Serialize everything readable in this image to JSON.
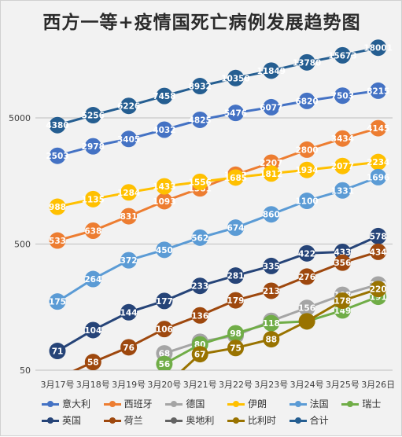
{
  "chart_data": {
    "type": "line",
    "title": "西方一等+疫情国死亡病例发展趋势图",
    "y_scale": "log",
    "ylim": [
      50,
      18000
    ],
    "y_ticks": [
      "50",
      "500",
      "5000"
    ],
    "categories": [
      "3月17号",
      "3月18号",
      "3月19号",
      "3月20号",
      "3月21号",
      "3月22号",
      "3月23号",
      "3月24号",
      "3月25号",
      "3月26日"
    ],
    "legend_position": "bottom",
    "series": [
      {
        "name": "意大利",
        "color": "#4472c4",
        "values": [
          2503,
          2978,
          3405,
          4032,
          4825,
          5476,
          6077,
          6820,
          7503,
          8215
        ]
      },
      {
        "name": "西班牙",
        "color": "#ed7d31",
        "values": [
          533,
          638,
          831,
          1093,
          1381,
          1772,
          2207,
          2800,
          3434,
          4145
        ]
      },
      {
        "name": "德国",
        "color": "#a5a5a5",
        "values": [
          null,
          null,
          null,
          68,
          84,
          94,
          123,
          156,
          198,
          239
        ]
      },
      {
        "name": "伊朗",
        "color": "#ffc000",
        "values": [
          988,
          1135,
          1284,
          1433,
          1556,
          1685,
          1812,
          1934,
          2077,
          2234
        ]
      },
      {
        "name": "法国",
        "color": "#5b9bd5",
        "values": [
          175,
          264,
          372,
          450,
          562,
          674,
          860,
          1100,
          1331,
          1696
        ]
      },
      {
        "name": "瑞士",
        "color": "#70ad47",
        "values": [
          null,
          null,
          null,
          56,
          80,
          98,
          118,
          122,
          149,
          191
        ]
      },
      {
        "name": "英国",
        "color": "#264478",
        "values": [
          71,
          104,
          144,
          177,
          233,
          281,
          335,
          422,
          433,
          578
        ]
      },
      {
        "name": "荷兰",
        "color": "#9e480e",
        "values": [
          43,
          58,
          76,
          106,
          136,
          179,
          213,
          276,
          356,
          434
        ]
      },
      {
        "name": "奥地利",
        "color": "#636363",
        "values": [
          null,
          null,
          null,
          null,
          null,
          null,
          null,
          null,
          null,
          null
        ]
      },
      {
        "name": "比利时",
        "color": "#997300",
        "values": [
          null,
          null,
          null,
          37,
          67,
          75,
          88,
          122,
          178,
          220
        ]
      },
      {
        "name": "合计",
        "color": "#255e91",
        "values": [
          4380,
          5256,
          6226,
          7458,
          8932,
          10350,
          11849,
          13780,
          15673,
          18001
        ]
      }
    ],
    "data_labels": [
      {
        "series": 0,
        "labels": [
          "2503",
          "2978",
          "3405",
          "4032",
          "4825",
          "5476",
          "6077",
          "6820",
          "7503",
          "8215"
        ]
      },
      {
        "series": 1,
        "labels": [
          "533",
          "638",
          "831",
          "1093",
          "1381",
          "1772",
          "2207",
          "2800",
          "3434",
          "4145"
        ]
      },
      {
        "series": 2,
        "labels": [
          "",
          "",
          "",
          "68",
          "84",
          "94",
          "",
          "156",
          "198",
          "239"
        ]
      },
      {
        "series": 3,
        "labels": [
          "988",
          "1135",
          "1284",
          "1433",
          "1556",
          "1685",
          "1812",
          "1934",
          "2077",
          "2234"
        ]
      },
      {
        "series": 4,
        "labels": [
          "175",
          "264",
          "372",
          "450",
          "562",
          "674",
          "860",
          "1100",
          "1331",
          "1696"
        ]
      },
      {
        "series": 5,
        "labels": [
          "",
          "",
          "",
          "56",
          "80",
          "98",
          "118",
          "122",
          "149",
          "191"
        ]
      },
      {
        "series": 6,
        "labels": [
          "71",
          "104",
          "144",
          "177",
          "233",
          "281",
          "335",
          "422",
          "433",
          "578"
        ]
      },
      {
        "series": 7,
        "labels": [
          "",
          "58",
          "76",
          "106",
          "136",
          "179",
          "213",
          "276",
          "356",
          "434"
        ]
      },
      {
        "series": 9,
        "labels": [
          "",
          "",
          "",
          "",
          "67",
          "75",
          "88",
          "",
          "178",
          "220"
        ]
      },
      {
        "series": 10,
        "labels": [
          "4380",
          "5256",
          "6226",
          "7458",
          "8932",
          "10350",
          "11849",
          "13780",
          "15673",
          "18001"
        ]
      }
    ]
  }
}
